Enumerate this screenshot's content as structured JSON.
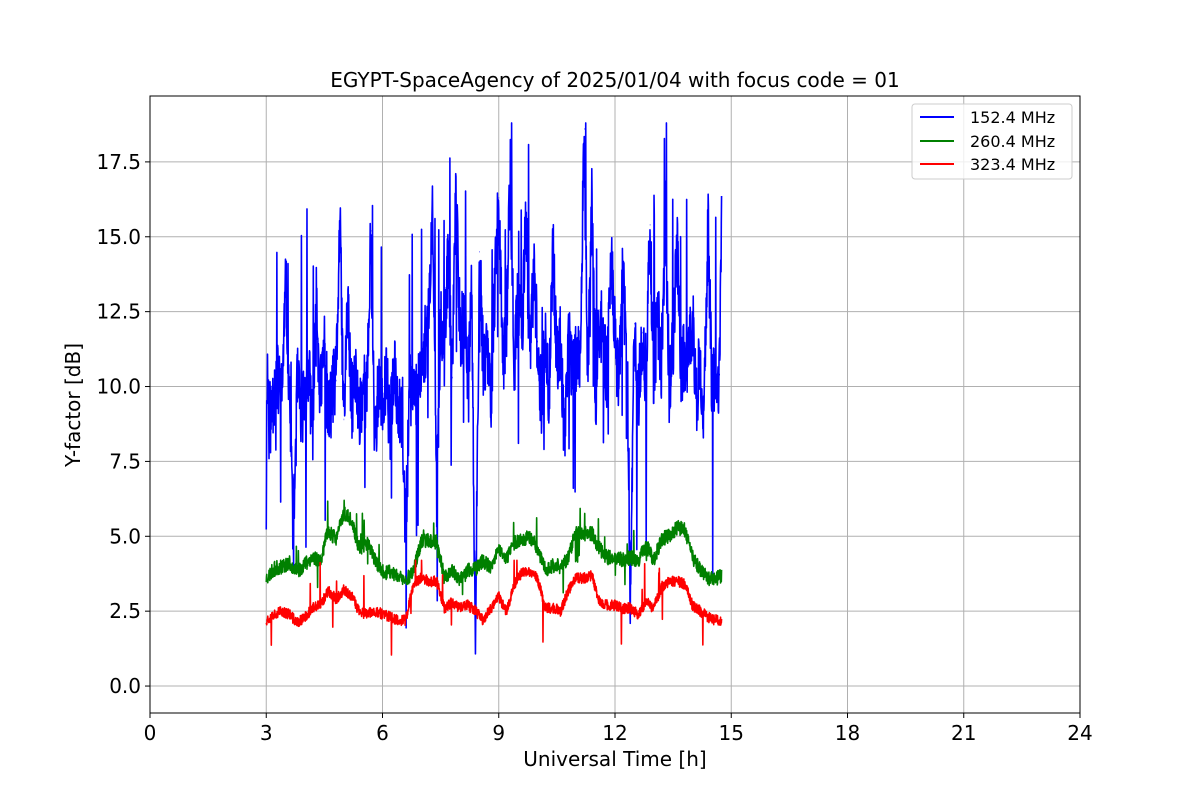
{
  "chart_data": {
    "type": "line",
    "title": "EGYPT-SpaceAgency of 2025/01/04 with focus code = 01",
    "xlabel": "Universal Time [h]",
    "ylabel": "Y-factor [dB]",
    "xlim": [
      0,
      24
    ],
    "ylim": [
      -0.9,
      19.7
    ],
    "xticks": [
      0,
      3,
      6,
      9,
      12,
      15,
      18,
      21,
      24
    ],
    "yticks": [
      0.0,
      2.5,
      5.0,
      7.5,
      10.0,
      12.5,
      15.0,
      17.5
    ],
    "xtick_labels": [
      "0",
      "3",
      "6",
      "9",
      "12",
      "15",
      "18",
      "21",
      "24"
    ],
    "ytick_labels": [
      "0.0",
      "2.5",
      "5.0",
      "7.5",
      "10.0",
      "12.5",
      "15.0",
      "17.5"
    ],
    "grid": true,
    "legend_position": "top-right",
    "series": [
      {
        "name": "152.4 MHz",
        "color": "#0000ff",
        "x": [
          3.0,
          3.02,
          3.1,
          3.2,
          3.3,
          3.4,
          3.5,
          3.6,
          3.7,
          3.8,
          3.9,
          4.0,
          4.1,
          4.2,
          4.3,
          4.4,
          4.5,
          4.6,
          4.7,
          4.8,
          4.9,
          5.0,
          5.1,
          5.2,
          5.3,
          5.4,
          5.5,
          5.6,
          5.7,
          5.8,
          5.9,
          6.0,
          6.1,
          6.2,
          6.3,
          6.4,
          6.5,
          6.6,
          6.7,
          6.8,
          6.9,
          7.0,
          7.1,
          7.2,
          7.3,
          7.4,
          7.5,
          7.6,
          7.7,
          7.8,
          7.9,
          8.0,
          8.1,
          8.2,
          8.3,
          8.4,
          8.5,
          8.6,
          8.7,
          8.8,
          8.9,
          9.0,
          9.1,
          9.2,
          9.3,
          9.4,
          9.5,
          9.6,
          9.7,
          9.8,
          9.9,
          10.0,
          10.1,
          10.2,
          10.3,
          10.4,
          10.5,
          10.6,
          10.7,
          10.8,
          10.9,
          11.0,
          11.1,
          11.2,
          11.3,
          11.4,
          11.5,
          11.6,
          11.7,
          11.8,
          11.9,
          12.0,
          12.1,
          12.2,
          12.3,
          12.4,
          12.5,
          12.6,
          12.7,
          12.8,
          12.9,
          13.0,
          13.1,
          13.2,
          13.3,
          13.4,
          13.5,
          13.6,
          13.7,
          13.8,
          13.9,
          14.0,
          14.1,
          14.2,
          14.3,
          14.4,
          14.5,
          14.6,
          14.7,
          14.75
        ],
        "y": [
          5.9,
          10.6,
          8.9,
          9.9,
          10.2,
          9.6,
          13.5,
          9.9,
          5.0,
          10.1,
          9.1,
          9.8,
          10.3,
          8.8,
          12.5,
          9.7,
          11.4,
          8.9,
          9.8,
          10.2,
          15.5,
          8.9,
          12.8,
          9.4,
          10.3,
          9.0,
          10.1,
          9.6,
          15.2,
          8.3,
          9.9,
          9.1,
          10.1,
          8.7,
          10.4,
          9.6,
          9.0,
          5.1,
          9.8,
          10.3,
          9.6,
          10.9,
          11.5,
          12.1,
          16.0,
          6.3,
          12.5,
          11.2,
          14.5,
          10.3,
          16.8,
          11.8,
          12.1,
          10.6,
          12.9,
          1.1,
          14.5,
          10.7,
          11.5,
          9.7,
          13.4,
          16.3,
          10.7,
          12.2,
          17.3,
          10.4,
          13.1,
          11.5,
          16.1,
          10.9,
          13.8,
          11.5,
          9.4,
          11.7,
          9.7,
          14.6,
          10.6,
          11.5,
          8.0,
          12.3,
          10.3,
          11.1,
          10.8,
          18.6,
          10.2,
          16.1,
          9.6,
          12.3,
          11.5,
          10.2,
          14.4,
          11.9,
          9.9,
          14.1,
          10.5,
          2.6,
          12.1,
          9.4,
          11.8,
          10.4,
          15.4,
          10.2,
          12.4,
          10.8,
          16.0,
          9.9,
          11.3,
          14.8,
          10.5,
          11.1,
          10.8,
          12.3,
          9.6,
          10.9,
          9.2,
          15.4,
          9.9,
          10.3,
          10.4,
          15.4
        ],
        "y_span_min": 0.6,
        "y_span_max": 18.8
      },
      {
        "name": "260.4 MHz",
        "color": "#008000",
        "x": [
          3.0,
          3.2,
          3.4,
          3.6,
          3.8,
          4.0,
          4.2,
          4.4,
          4.6,
          4.8,
          5.0,
          5.2,
          5.4,
          5.6,
          5.8,
          6.0,
          6.2,
          6.4,
          6.6,
          6.8,
          7.0,
          7.2,
          7.4,
          7.6,
          7.8,
          8.0,
          8.2,
          8.4,
          8.6,
          8.8,
          9.0,
          9.2,
          9.4,
          9.6,
          9.8,
          10.0,
          10.2,
          10.4,
          10.6,
          10.8,
          11.0,
          11.2,
          11.4,
          11.6,
          11.8,
          12.0,
          12.2,
          12.4,
          12.6,
          12.8,
          13.0,
          13.2,
          13.4,
          13.6,
          13.8,
          14.0,
          14.2,
          14.4,
          14.6,
          14.75
        ],
        "y": [
          3.6,
          3.9,
          4.0,
          4.1,
          3.8,
          4.1,
          4.3,
          4.2,
          5.2,
          4.9,
          5.8,
          5.5,
          4.6,
          4.8,
          4.2,
          3.8,
          3.8,
          3.7,
          3.5,
          3.9,
          4.8,
          4.9,
          4.8,
          3.6,
          3.9,
          3.5,
          3.9,
          3.9,
          4.2,
          3.9,
          4.6,
          4.2,
          4.8,
          4.9,
          5.0,
          4.6,
          3.9,
          4.0,
          4.0,
          4.3,
          5.2,
          5.1,
          5.1,
          4.6,
          4.3,
          4.3,
          4.2,
          4.3,
          4.2,
          4.7,
          4.2,
          4.9,
          5.0,
          5.3,
          5.2,
          4.3,
          3.9,
          3.6,
          3.6,
          3.7
        ],
        "y_span_min": 2.8,
        "y_span_max": 6.2
      },
      {
        "name": "323.4 MHz",
        "color": "#ff0000",
        "x": [
          3.0,
          3.2,
          3.4,
          3.6,
          3.8,
          4.0,
          4.2,
          4.4,
          4.6,
          4.8,
          5.0,
          5.2,
          5.4,
          5.6,
          5.8,
          6.0,
          6.2,
          6.4,
          6.6,
          6.8,
          7.0,
          7.2,
          7.4,
          7.6,
          7.8,
          8.0,
          8.2,
          8.4,
          8.6,
          8.8,
          9.0,
          9.2,
          9.4,
          9.6,
          9.8,
          10.0,
          10.2,
          10.4,
          10.6,
          10.8,
          11.0,
          11.2,
          11.4,
          11.6,
          11.8,
          12.0,
          12.2,
          12.4,
          12.6,
          12.8,
          13.0,
          13.2,
          13.4,
          13.6,
          13.8,
          14.0,
          14.2,
          14.4,
          14.6,
          14.75
        ],
        "y": [
          2.2,
          2.4,
          2.5,
          2.4,
          2.1,
          2.3,
          2.6,
          2.7,
          3.2,
          2.9,
          3.2,
          3.0,
          2.5,
          2.4,
          2.5,
          2.4,
          2.3,
          2.2,
          2.2,
          3.4,
          3.6,
          3.5,
          3.5,
          2.6,
          2.8,
          2.6,
          2.7,
          2.5,
          2.2,
          2.6,
          3.0,
          2.5,
          3.4,
          3.8,
          3.8,
          3.6,
          2.6,
          2.6,
          2.5,
          3.2,
          3.6,
          3.6,
          3.7,
          2.8,
          2.7,
          2.7,
          2.6,
          2.6,
          2.4,
          2.8,
          2.6,
          3.3,
          3.5,
          3.5,
          3.4,
          2.7,
          2.5,
          2.3,
          2.2,
          2.2
        ],
        "y_span_min": 0.0,
        "y_span_max": 4.2
      }
    ]
  }
}
